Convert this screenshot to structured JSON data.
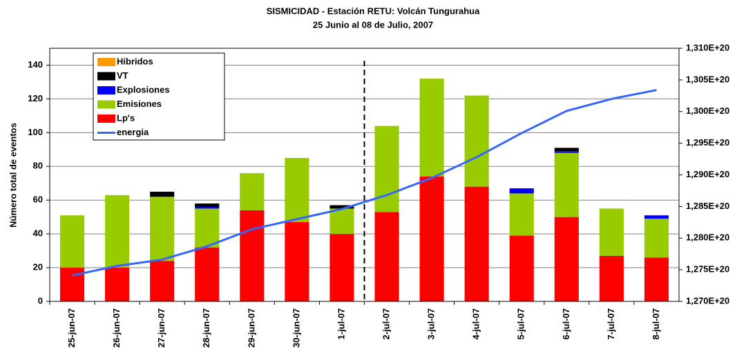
{
  "chart_data": {
    "type": "bar",
    "stacked": true,
    "title": "SISMICIDAD - Estación RETU:     Volcán Tungurahua",
    "subtitle": "25 Junio al 08 de Julio, 2007",
    "y_label": "Número total de eventos",
    "categories": [
      "25-jun-07",
      "26-jun-07",
      "27-jun-07",
      "28-jun-07",
      "29-jun-07",
      "30-jun-07",
      "1-jul-07",
      "2-jul-07",
      "3-jul-07",
      "4-jul-07",
      "5-jul-07",
      "6-jul-07",
      "7-jul-07",
      "8-jul-07"
    ],
    "series": [
      {
        "name": "Hibridos",
        "color": "#ff9900",
        "values": [
          0,
          0,
          0,
          0,
          0,
          0,
          0,
          0,
          0,
          0,
          0,
          0,
          0,
          0
        ]
      },
      {
        "name": "VT",
        "color": "#000000",
        "values": [
          0,
          0,
          3,
          2,
          0,
          0,
          2,
          0,
          0,
          0,
          0,
          2,
          0,
          0
        ]
      },
      {
        "name": "Explosiones",
        "color": "#0000ff",
        "values": [
          0,
          0,
          0,
          1,
          0,
          0,
          0,
          0,
          0,
          0,
          3,
          1,
          0,
          2
        ]
      },
      {
        "name": "Emisiones",
        "color": "#99cc00",
        "values": [
          31,
          43,
          38,
          23,
          22,
          38,
          15,
          51,
          58,
          54,
          25,
          38,
          28,
          23
        ]
      },
      {
        "name": "Lp's",
        "color": "#ff0000",
        "values": [
          20,
          20,
          24,
          32,
          54,
          47,
          40,
          53,
          74,
          68,
          39,
          50,
          27,
          26
        ]
      },
      {
        "name": "energia",
        "color": "#3366ff",
        "type": "line",
        "axis": "y2",
        "values": [
          1.2741e+20,
          1.2756e+20,
          1.2766e+20,
          1.2787e+20,
          1.2814e+20,
          1.283e+20,
          1.2846e+20,
          1.2868e+20,
          1.2895e+20,
          1.2928e+20,
          1.2966e+20,
          1.3001e+20,
          1.302e+20,
          1.3034e+20
        ]
      }
    ],
    "ylim": [
      0,
      150
    ],
    "yticks": [
      0,
      20,
      40,
      60,
      80,
      100,
      120,
      140
    ],
    "y2lim": [
      1.27e+20,
      1.31e+20
    ],
    "y2ticks": [
      {
        "value": 1.27e+20,
        "label": "1,270E+20"
      },
      {
        "value": 1.275e+20,
        "label": "1,275E+20"
      },
      {
        "value": 1.28e+20,
        "label": "1,280E+20"
      },
      {
        "value": 1.285e+20,
        "label": "1,285E+20"
      },
      {
        "value": 1.29e+20,
        "label": "1,290E+20"
      },
      {
        "value": 1.295e+20,
        "label": "1,295E+20"
      },
      {
        "value": 1.3e+20,
        "label": "1,300E+20"
      },
      {
        "value": 1.305e+20,
        "label": "1,305E+20"
      },
      {
        "value": 1.31e+20,
        "label": "1,310E+20"
      }
    ],
    "grid": true,
    "legend": "upper left"
  }
}
